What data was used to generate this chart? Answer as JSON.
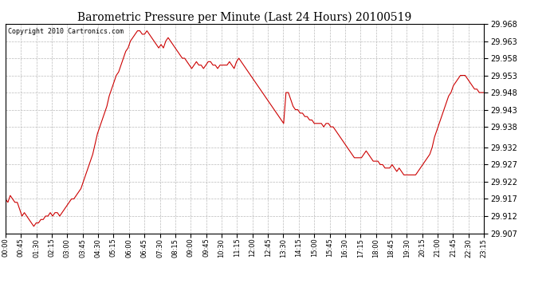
{
  "title": "Barometric Pressure per Minute (Last 24 Hours) 20100519",
  "copyright": "Copyright 2010 Cartronics.com",
  "line_color": "#cc0000",
  "background_color": "#ffffff",
  "grid_color": "#bbbbbb",
  "ylim": [
    29.907,
    29.968
  ],
  "yticks": [
    29.907,
    29.912,
    29.917,
    29.922,
    29.927,
    29.932,
    29.938,
    29.943,
    29.948,
    29.953,
    29.958,
    29.963,
    29.968
  ],
  "xtick_labels": [
    "00:00",
    "00:45",
    "01:30",
    "02:15",
    "03:00",
    "03:45",
    "04:30",
    "05:15",
    "06:00",
    "06:45",
    "07:30",
    "08:15",
    "09:00",
    "09:45",
    "10:30",
    "11:15",
    "12:00",
    "12:45",
    "13:30",
    "14:15",
    "15:00",
    "15:45",
    "16:30",
    "17:15",
    "18:00",
    "18:45",
    "19:30",
    "20:15",
    "21:00",
    "21:45",
    "22:30",
    "23:15"
  ],
  "pressure_data": [
    29.917,
    29.916,
    29.918,
    29.917,
    29.916,
    29.916,
    29.914,
    29.912,
    29.913,
    29.912,
    29.911,
    29.91,
    29.909,
    29.91,
    29.91,
    29.911,
    29.911,
    29.912,
    29.912,
    29.913,
    29.912,
    29.913,
    29.913,
    29.912,
    29.913,
    29.914,
    29.915,
    29.916,
    29.917,
    29.917,
    29.918,
    29.919,
    29.92,
    29.922,
    29.924,
    29.926,
    29.928,
    29.93,
    29.933,
    29.936,
    29.938,
    29.94,
    29.942,
    29.944,
    29.947,
    29.949,
    29.951,
    29.953,
    29.954,
    29.956,
    29.958,
    29.96,
    29.961,
    29.963,
    29.964,
    29.965,
    29.966,
    29.966,
    29.965,
    29.965,
    29.966,
    29.965,
    29.964,
    29.963,
    29.962,
    29.961,
    29.962,
    29.961,
    29.963,
    29.964,
    29.963,
    29.962,
    29.961,
    29.96,
    29.959,
    29.958,
    29.958,
    29.957,
    29.956,
    29.955,
    29.956,
    29.957,
    29.956,
    29.956,
    29.955,
    29.956,
    29.957,
    29.957,
    29.956,
    29.956,
    29.955,
    29.956,
    29.956,
    29.956,
    29.956,
    29.957,
    29.956,
    29.955,
    29.957,
    29.958,
    29.957,
    29.956,
    29.955,
    29.954,
    29.953,
    29.952,
    29.951,
    29.95,
    29.949,
    29.948,
    29.947,
    29.946,
    29.945,
    29.944,
    29.943,
    29.942,
    29.941,
    29.94,
    29.939,
    29.948,
    29.948,
    29.946,
    29.944,
    29.943,
    29.943,
    29.942,
    29.942,
    29.941,
    29.941,
    29.94,
    29.94,
    29.939,
    29.939,
    29.939,
    29.939,
    29.938,
    29.939,
    29.939,
    29.938,
    29.938,
    29.937,
    29.936,
    29.935,
    29.934,
    29.933,
    29.932,
    29.931,
    29.93,
    29.929,
    29.929,
    29.929,
    29.929,
    29.93,
    29.931,
    29.93,
    29.929,
    29.928,
    29.928,
    29.928,
    29.927,
    29.927,
    29.926,
    29.926,
    29.926,
    29.927,
    29.926,
    29.925,
    29.926,
    29.925,
    29.924,
    29.924,
    29.924,
    29.924,
    29.924,
    29.924,
    29.925,
    29.926,
    29.927,
    29.928,
    29.929,
    29.93,
    29.932,
    29.935,
    29.937,
    29.939,
    29.941,
    29.943,
    29.945,
    29.947,
    29.948,
    29.95,
    29.951,
    29.952,
    29.953,
    29.953,
    29.953,
    29.952,
    29.951,
    29.95,
    29.949,
    29.949,
    29.948,
    29.948,
    29.948
  ]
}
